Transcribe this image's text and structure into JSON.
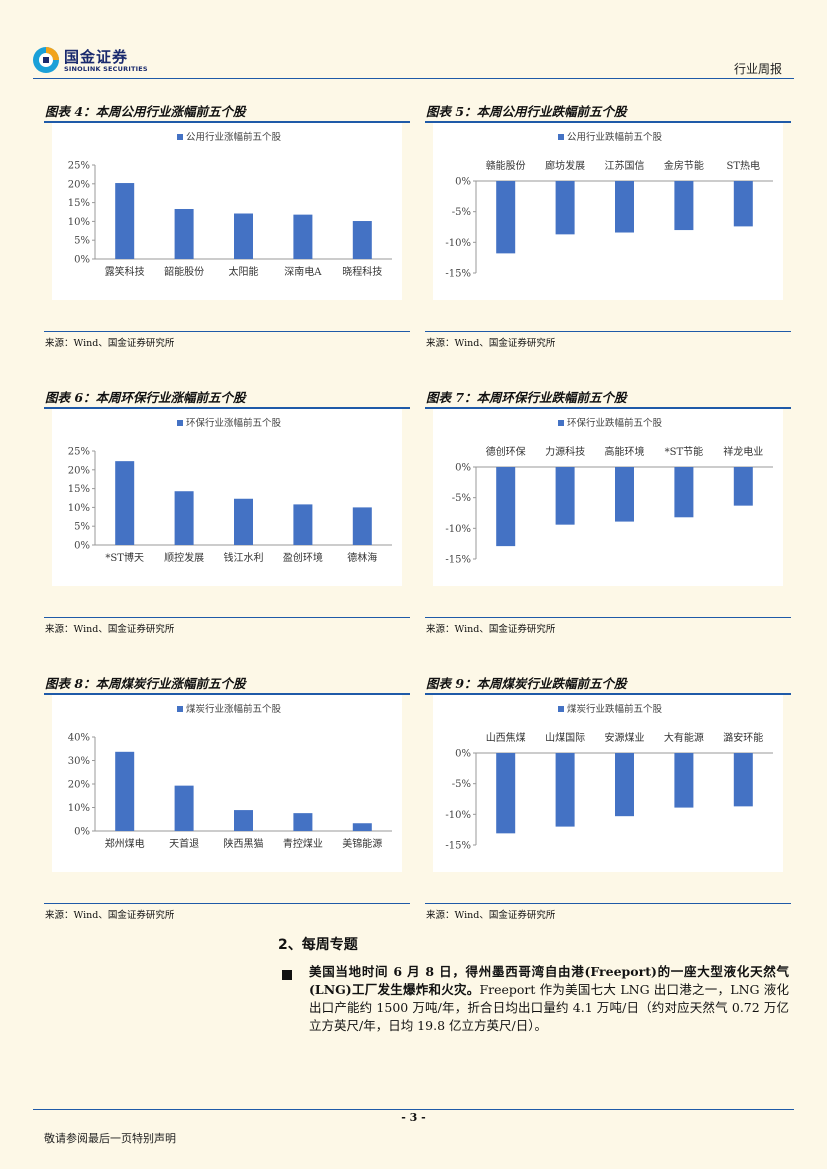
{
  "header": {
    "logo_cn": "国金证券",
    "logo_en": "SINOLINK SECURITIES",
    "report_type": "行业周报",
    "colors": {
      "accent": "#1f5aa8",
      "bar": "#4472c4",
      "logo_blue": "#1a2a6e",
      "logo_cyan": "#1aa0d8",
      "logo_orange": "#f2a31b"
    }
  },
  "panels": [
    {
      "title": "图表 4：本周公用行业涨幅前五个股",
      "source": "来源：Wind、国金证券研究所"
    },
    {
      "title": "图表 5：本周公用行业跌幅前五个股",
      "source": "来源：Wind、国金证券研究所"
    },
    {
      "title": "图表 6：本周环保行业涨幅前五个股",
      "source": "来源：Wind、国金证券研究所"
    },
    {
      "title": "图表 7：本周环保行业跌幅前五个股",
      "source": "来源：Wind、国金证券研究所"
    },
    {
      "title": "图表 8：本周煤炭行业涨幅前五个股",
      "source": "来源：Wind、国金证券研究所"
    },
    {
      "title": "图表 9：本周煤炭行业跌幅前五个股",
      "source": "来源：Wind、国金证券研究所"
    }
  ],
  "chart_data": [
    {
      "type": "bar",
      "series": [
        {
          "name": "公用行业涨幅前五个股",
          "values": [
            20.2,
            13.3,
            12.1,
            11.8,
            10.1
          ]
        }
      ],
      "categories": [
        "露笑科技",
        "韶能股份",
        "太阳能",
        "深南电A",
        "晓程科技"
      ],
      "ylim": [
        0,
        25
      ],
      "ticks": [
        0,
        5,
        10,
        15,
        20,
        25
      ],
      "tick_labels": [
        "0%",
        "5%",
        "10%",
        "15%",
        "20%",
        "25%"
      ],
      "legend": "top"
    },
    {
      "type": "bar",
      "series": [
        {
          "name": "公用行业跌幅前五个股",
          "values": [
            -11.8,
            -8.7,
            -8.4,
            -8.0,
            -7.4
          ]
        }
      ],
      "categories": [
        "赣能股份",
        "廊坊发展",
        "江苏国信",
        "金房节能",
        "ST热电"
      ],
      "ylim": [
        -15,
        0
      ],
      "ticks": [
        0,
        -5,
        -10,
        -15
      ],
      "tick_labels": [
        "0%",
        "-5%",
        "-10%",
        "-15%"
      ],
      "legend": "top"
    },
    {
      "type": "bar",
      "series": [
        {
          "name": "环保行业涨幅前五个股",
          "values": [
            22.3,
            14.3,
            12.3,
            10.8,
            10.0
          ]
        }
      ],
      "categories": [
        "*ST博天",
        "顺控发展",
        "钱江水利",
        "盈创环境",
        "德林海"
      ],
      "ylim": [
        0,
        25
      ],
      "ticks": [
        0,
        5,
        10,
        15,
        20,
        25
      ],
      "tick_labels": [
        "0%",
        "5%",
        "10%",
        "15%",
        "20%",
        "25%"
      ],
      "legend": "top"
    },
    {
      "type": "bar",
      "series": [
        {
          "name": "环保行业跌幅前五个股",
          "values": [
            -12.9,
            -9.4,
            -8.9,
            -8.2,
            -6.3
          ]
        }
      ],
      "categories": [
        "德创环保",
        "力源科技",
        "高能环境",
        "*ST节能",
        "祥龙电业"
      ],
      "ylim": [
        -15,
        0
      ],
      "ticks": [
        0,
        -5,
        -10,
        -15
      ],
      "tick_labels": [
        "0%",
        "-5%",
        "-10%",
        "-15%"
      ],
      "legend": "top"
    },
    {
      "type": "bar",
      "series": [
        {
          "name": "煤炭行业涨幅前五个股",
          "values": [
            33.7,
            19.3,
            8.9,
            7.6,
            3.3
          ]
        }
      ],
      "categories": [
        "郑州煤电",
        "天首退",
        "陕西黑猫",
        "青控煤业",
        "美锦能源"
      ],
      "ylim": [
        0,
        40
      ],
      "ticks": [
        0,
        10,
        20,
        30,
        40
      ],
      "tick_labels": [
        "0%",
        "10%",
        "20%",
        "30%",
        "40%"
      ],
      "legend": "top"
    },
    {
      "type": "bar",
      "series": [
        {
          "name": "煤炭行业跌幅前五个股",
          "values": [
            -13.1,
            -12.0,
            -10.3,
            -8.9,
            -8.7
          ]
        }
      ],
      "categories": [
        "山西焦煤",
        "山煤国际",
        "安源煤业",
        "大有能源",
        "潞安环能"
      ],
      "ylim": [
        -15,
        0
      ],
      "ticks": [
        0,
        -5,
        -10,
        -15
      ],
      "tick_labels": [
        "0%",
        "-5%",
        "-10%",
        "-15%"
      ],
      "legend": "top"
    }
  ],
  "section": {
    "title": "2、每周专题",
    "para_bold": "美国当地时间 6 月 8 日，得州墨西哥湾自由港(Freeport)的一座大型液化天然气(LNG)工厂发生爆炸和火灾。",
    "para_rest": "Freeport 作为美国七大 LNG 出口港之一，LNG 液化出口产能约 1500 万吨/年，折合日均出口量约 4.1 万吨/日（约对应天然气 0.72 万亿立方英尺/年，日均 19.8 亿立方英尺/日）。"
  },
  "footer": {
    "page_number": "- 3 -",
    "note": "敬请参阅最后一页特别声明"
  }
}
